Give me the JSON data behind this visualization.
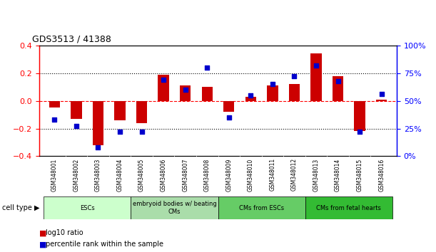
{
  "title": "GDS3513 / 41388",
  "samples": [
    "GSM348001",
    "GSM348002",
    "GSM348003",
    "GSM348004",
    "GSM348005",
    "GSM348006",
    "GSM348007",
    "GSM348008",
    "GSM348009",
    "GSM348010",
    "GSM348011",
    "GSM348012",
    "GSM348013",
    "GSM348014",
    "GSM348015",
    "GSM348016"
  ],
  "log10_ratio": [
    -0.05,
    -0.13,
    -0.32,
    -0.14,
    -0.16,
    0.19,
    0.11,
    0.1,
    -0.08,
    0.03,
    0.11,
    0.12,
    0.34,
    0.18,
    -0.22,
    0.01
  ],
  "percentile_rank": [
    33,
    27,
    8,
    22,
    22,
    69,
    60,
    80,
    35,
    55,
    65,
    72,
    82,
    68,
    22,
    56
  ],
  "bar_color": "#cc0000",
  "dot_color": "#0000cc",
  "ylim_left": [
    -0.4,
    0.4
  ],
  "ylim_right": [
    0,
    100
  ],
  "yticks_left": [
    -0.4,
    -0.2,
    0.0,
    0.2,
    0.4
  ],
  "yticks_right": [
    0,
    25,
    50,
    75,
    100
  ],
  "ytick_labels_right": [
    "0%",
    "25%",
    "50%",
    "75%",
    "100%"
  ],
  "hlines": [
    0.2,
    0.0,
    -0.2
  ],
  "hline_styles": [
    "dotted",
    "dashed",
    "dotted"
  ],
  "hline_colors": [
    "black",
    "red",
    "black"
  ],
  "cell_groups": [
    {
      "label": "ESCs",
      "start": 0,
      "end": 4,
      "color": "#ccffcc"
    },
    {
      "label": "embryoid bodies w/ beating\nCMs",
      "start": 4,
      "end": 8,
      "color": "#aaddaa"
    },
    {
      "label": "CMs from ESCs",
      "start": 8,
      "end": 12,
      "color": "#66cc66"
    },
    {
      "label": "CMs from fetal hearts",
      "start": 12,
      "end": 16,
      "color": "#33bb33"
    }
  ],
  "cell_type_label": "cell type",
  "legend_red_label": "log10 ratio",
  "legend_blue_label": "percentile rank within the sample",
  "bar_width": 0.5,
  "dot_size": 25,
  "figsize": [
    6.11,
    3.54
  ],
  "dpi": 100
}
